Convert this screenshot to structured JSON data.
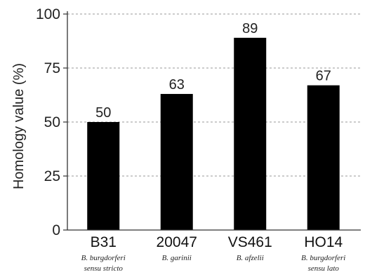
{
  "chart_data": {
    "type": "bar",
    "title": "",
    "ylabel": "Homology value (%)",
    "xlabel": "",
    "ylim": [
      0,
      100
    ],
    "yticks": [
      0,
      25,
      50,
      75,
      100
    ],
    "grid": "horizontal-dashed",
    "categories": [
      "B31",
      "20047",
      "VS461",
      "HO14"
    ],
    "category_sublabels": [
      [
        "B. burgdorferi",
        "sensu stricto"
      ],
      [
        "B. garinii"
      ],
      [
        "B. afzelii"
      ],
      [
        "B. burgdorferi",
        "sensu lato"
      ]
    ],
    "values": [
      50,
      63,
      89,
      67
    ],
    "data_labels": [
      "50",
      "63",
      "89",
      "67"
    ],
    "bar_color": "#000000",
    "grid_color": "#9a9a9a"
  }
}
